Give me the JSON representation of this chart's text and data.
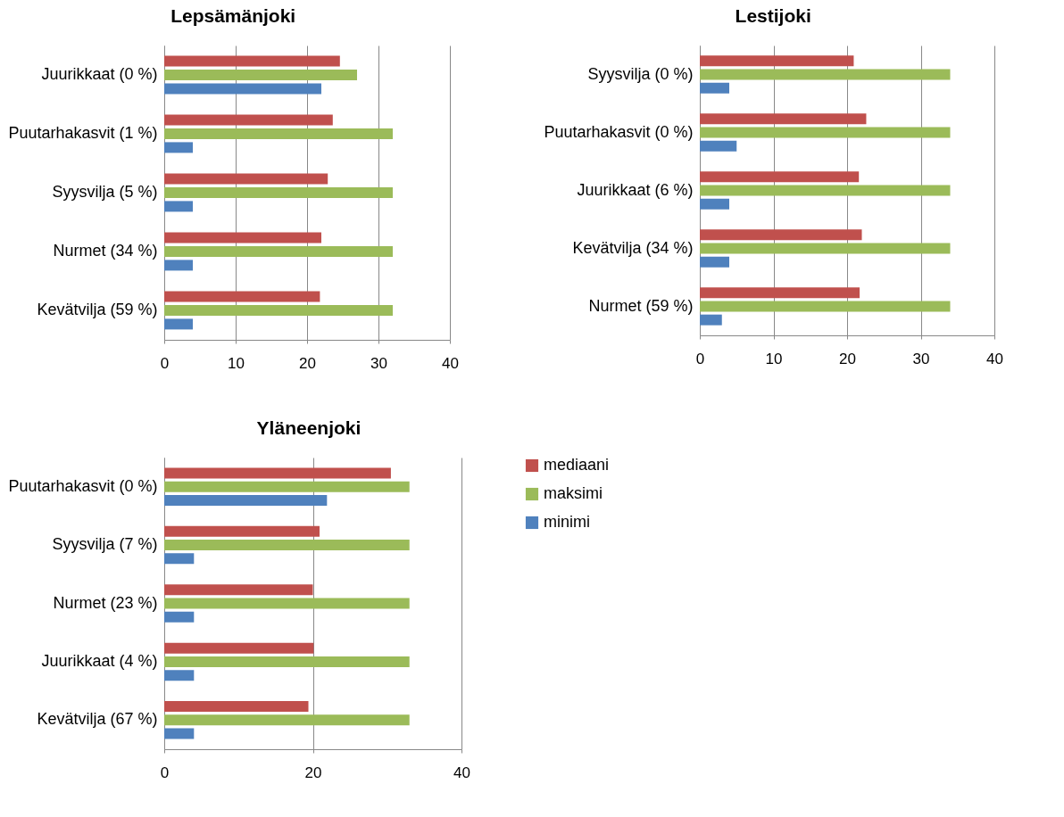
{
  "chart_data": [
    {
      "type": "bar",
      "orientation": "horizontal",
      "title": "Lepsämänjoki",
      "categories": [
        "Juurikkaat (0 %)",
        "Puutarhakasvit (1 %)",
        "Syysvilja (5 %)",
        "Nurmet (34 %)",
        "Kevätvilja (59 %)"
      ],
      "series": [
        {
          "color": "#c0504d",
          "values": [
            24.6,
            23.6,
            22.9,
            22.0,
            21.8
          ]
        },
        {
          "color": "#9bbb59",
          "values": [
            27,
            32,
            32,
            32,
            32
          ]
        },
        {
          "color": "#4f81bd",
          "values": [
            22,
            4,
            4,
            4,
            4
          ]
        }
      ],
      "xlim": [
        0,
        40
      ],
      "xticks": [
        0,
        10,
        20,
        30,
        40
      ],
      "grid": "x",
      "legend": false
    },
    {
      "type": "bar",
      "orientation": "horizontal",
      "title": "Lestijoki",
      "categories": [
        "Syysvilja (0 %)",
        "Puutarhakasvit (0 %)",
        "Juurikkaat (6 %)",
        "Kevätvilja (34 %)",
        "Nurmet (59 %)"
      ],
      "series": [
        {
          "color": "#c0504d",
          "values": [
            20.9,
            22.6,
            21.6,
            22.0,
            21.7
          ]
        },
        {
          "color": "#9bbb59",
          "values": [
            34,
            34,
            34,
            34,
            34
          ]
        },
        {
          "color": "#4f81bd",
          "values": [
            4,
            5,
            4,
            4,
            3
          ]
        }
      ],
      "xlim": [
        0,
        40
      ],
      "xticks": [
        0,
        10,
        20,
        30,
        40
      ],
      "grid": "x",
      "legend": false
    },
    {
      "type": "bar",
      "orientation": "horizontal",
      "title": "Yläneenjoki",
      "categories": [
        "Puutarhakasvit (0 %)",
        "Syysvilja (7 %)",
        "Nurmet (23 %)",
        "Juurikkaat (4 %)",
        "Kevätvilja (67 %)"
      ],
      "series": [
        {
          "name": "mediaani",
          "color": "#c0504d",
          "values": [
            30.5,
            20.9,
            20.0,
            20.1,
            19.4
          ]
        },
        {
          "name": "maksimi",
          "color": "#9bbb59",
          "values": [
            33,
            33,
            33,
            33,
            33
          ]
        },
        {
          "name": "minimi",
          "color": "#4f81bd",
          "values": [
            21.9,
            4,
            4,
            4,
            4
          ]
        }
      ],
      "xlim": [
        0,
        40
      ],
      "xticks": [
        0,
        20,
        40
      ],
      "grid": "x",
      "legend": "right"
    }
  ]
}
